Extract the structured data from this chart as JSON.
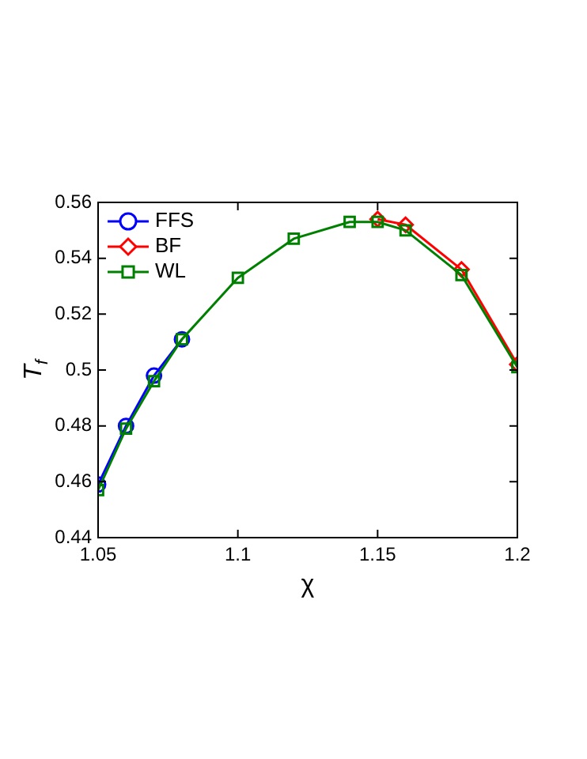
{
  "chart_data": {
    "type": "line",
    "xlabel": "χ",
    "ylabel": "T$_{f}$",
    "xlim": [
      1.05,
      1.2
    ],
    "xticks": [
      1.05,
      1.1,
      1.15,
      1.2
    ],
    "ylim": [
      0.44,
      0.56
    ],
    "yticks": [
      0.44,
      0.46,
      0.48,
      0.5,
      0.52,
      0.54,
      0.56
    ],
    "grid": false,
    "legend": "top left",
    "line_style": "solid",
    "series": [
      {
        "name": "FFS",
        "color": "#0000ff",
        "marker": "circle",
        "x": [
          1.05,
          1.06,
          1.07,
          1.08
        ],
        "values": [
          0.459,
          0.48,
          0.498,
          0.511
        ]
      },
      {
        "name": "BF",
        "color": "#ff0000",
        "marker": "diamond",
        "x": [
          1.15,
          1.16,
          1.18,
          1.2
        ],
        "values": [
          0.554,
          0.552,
          0.536,
          0.502
        ]
      },
      {
        "name": "WL",
        "color": "#008000",
        "marker": "square",
        "x": [
          1.05,
          1.06,
          1.07,
          1.08,
          1.1,
          1.12,
          1.14,
          1.15,
          1.16,
          1.18,
          1.2
        ],
        "values": [
          0.457,
          0.479,
          0.496,
          0.511,
          0.533,
          0.547,
          0.553,
          0.553,
          0.55,
          0.534,
          0.501
        ]
      }
    ]
  }
}
